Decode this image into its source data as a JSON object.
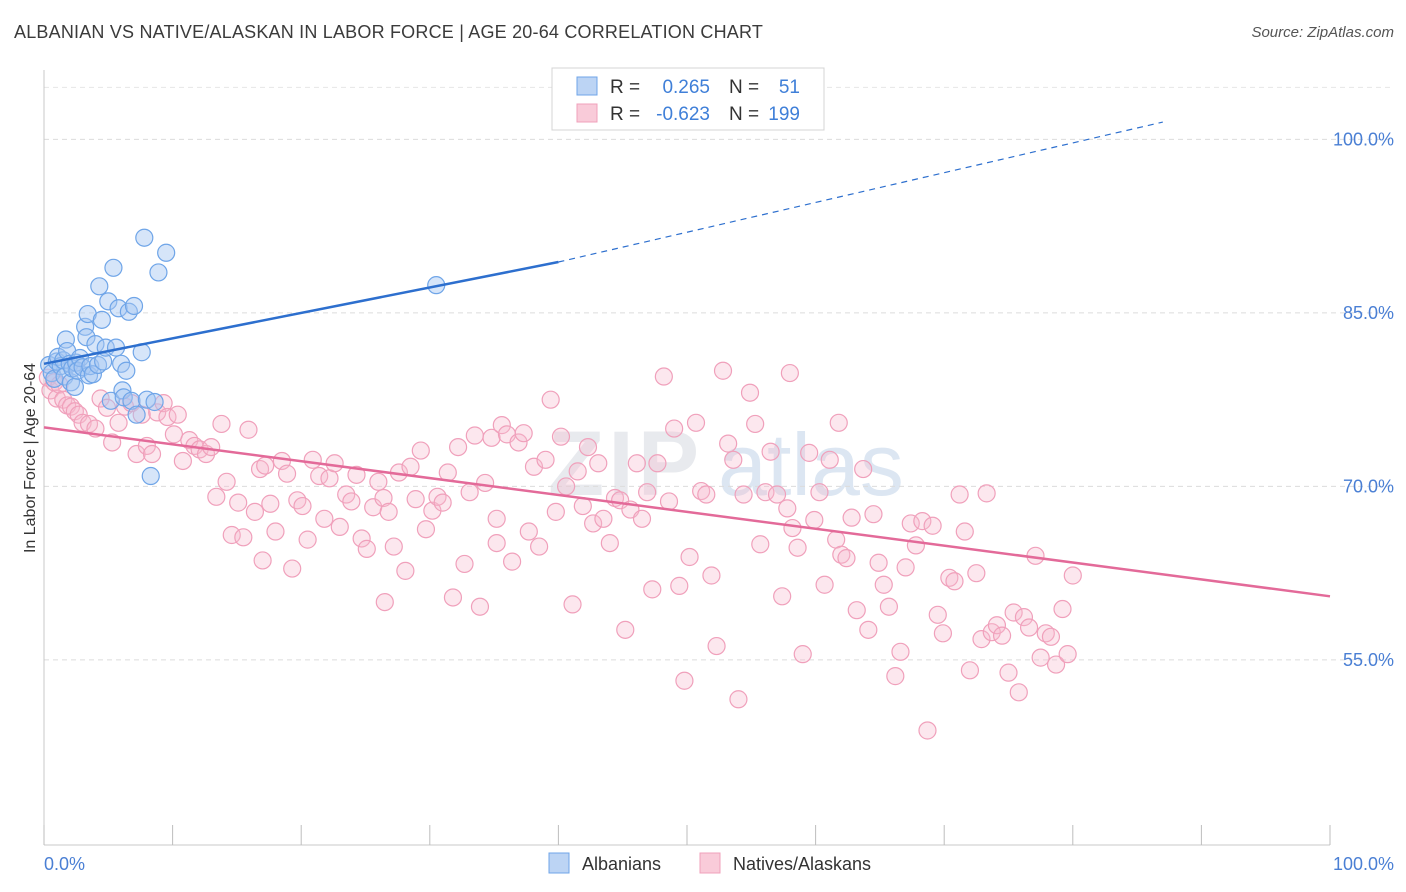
{
  "title": "ALBANIAN VS NATIVE/ALASKAN IN LABOR FORCE | AGE 20-64 CORRELATION CHART",
  "source": "Source: ZipAtlas.com",
  "watermark": {
    "zip": "ZIP",
    "atlas": "atlas"
  },
  "legend": {
    "rows": [
      {
        "r_label": "R =",
        "r_value": "0.265",
        "n_label": "N =",
        "n_value": "51",
        "color": "#6fa5e8"
      },
      {
        "r_label": "R =",
        "r_value": "-0.623",
        "n_label": "N =",
        "n_value": "199",
        "color": "#f0a0bb"
      }
    ]
  },
  "bottom_legend": {
    "albanians": "Albanians",
    "natives": "Natives/Alaskans"
  },
  "chart_data": {
    "type": "scatter",
    "xlabel": "",
    "ylabel": "In Labor Force | Age 20-64",
    "xlim": [
      0,
      100
    ],
    "ylim": [
      39,
      106
    ],
    "x_tick_labels": {
      "left": "0.0%",
      "right": "100.0%"
    },
    "y_ticks": [
      {
        "value": 100,
        "label": "100.0%"
      },
      {
        "value": 85,
        "label": "85.0%"
      },
      {
        "value": 70,
        "label": "70.0%"
      },
      {
        "value": 55,
        "label": "55.0%"
      }
    ],
    "grid": true,
    "series": [
      {
        "name": "Albanians",
        "color": "#6fa5e8",
        "line_color": "#2d6fce",
        "r": 0.265,
        "n": 51,
        "trend": {
          "x0": 0,
          "y0": 80.6,
          "x1": 40,
          "y1": 89.4,
          "x_dash_end": 87,
          "y_dash_end": 101.5
        },
        "points": [
          [
            0.4,
            80.5
          ],
          [
            0.6,
            79.8
          ],
          [
            0.8,
            79.3
          ],
          [
            1.0,
            80.8
          ],
          [
            1.1,
            81.2
          ],
          [
            1.3,
            80.4
          ],
          [
            1.5,
            80.9
          ],
          [
            1.6,
            79.5
          ],
          [
            1.7,
            82.7
          ],
          [
            1.8,
            81.7
          ],
          [
            2.0,
            80.6
          ],
          [
            2.1,
            79.0
          ],
          [
            2.2,
            80.2
          ],
          [
            2.4,
            78.6
          ],
          [
            2.5,
            80.7
          ],
          [
            2.6,
            80.0
          ],
          [
            2.8,
            81.1
          ],
          [
            3.0,
            80.3
          ],
          [
            3.2,
            83.8
          ],
          [
            3.3,
            82.9
          ],
          [
            3.4,
            84.9
          ],
          [
            3.5,
            79.6
          ],
          [
            3.6,
            80.4
          ],
          [
            3.8,
            79.7
          ],
          [
            4.0,
            82.3
          ],
          [
            4.2,
            80.5
          ],
          [
            4.3,
            87.3
          ],
          [
            4.5,
            84.4
          ],
          [
            4.6,
            80.8
          ],
          [
            4.8,
            82.0
          ],
          [
            5.0,
            86.0
          ],
          [
            5.2,
            77.4
          ],
          [
            5.4,
            88.9
          ],
          [
            5.6,
            82.0
          ],
          [
            5.8,
            85.4
          ],
          [
            6.0,
            80.6
          ],
          [
            6.1,
            78.3
          ],
          [
            6.2,
            77.7
          ],
          [
            6.4,
            80.0
          ],
          [
            6.6,
            85.1
          ],
          [
            6.8,
            77.4
          ],
          [
            7.0,
            85.6
          ],
          [
            7.2,
            76.2
          ],
          [
            7.6,
            81.6
          ],
          [
            7.8,
            91.5
          ],
          [
            8.0,
            77.5
          ],
          [
            8.3,
            70.9
          ],
          [
            8.6,
            77.3
          ],
          [
            8.9,
            88.5
          ],
          [
            9.5,
            90.2
          ],
          [
            30.5,
            87.4
          ]
        ]
      },
      {
        "name": "Natives/Alaskans",
        "color": "#f0a0bb",
        "line_color": "#e36a99",
        "r": -0.623,
        "n": 199,
        "trend": {
          "x0": 0,
          "y0": 75.1,
          "x1": 100,
          "y1": 60.5
        },
        "points": [
          [
            0.3,
            79.4
          ],
          [
            0.5,
            78.3
          ],
          [
            0.8,
            79.0
          ],
          [
            1.0,
            77.6
          ],
          [
            1.2,
            78.8
          ],
          [
            1.5,
            77.5
          ],
          [
            1.8,
            77.0
          ],
          [
            2.1,
            76.9
          ],
          [
            2.4,
            76.5
          ],
          [
            2.7,
            76.2
          ],
          [
            3.0,
            75.5
          ],
          [
            3.5,
            75.4
          ],
          [
            4.0,
            75.0
          ],
          [
            4.4,
            77.6
          ],
          [
            4.9,
            76.8
          ],
          [
            5.3,
            73.8
          ],
          [
            5.8,
            75.5
          ],
          [
            6.3,
            76.9
          ],
          [
            6.8,
            77.2
          ],
          [
            7.2,
            72.8
          ],
          [
            7.6,
            76.2
          ],
          [
            8.0,
            73.5
          ],
          [
            8.4,
            72.8
          ],
          [
            8.8,
            76.4
          ],
          [
            9.3,
            77.2
          ],
          [
            9.6,
            76.0
          ],
          [
            10.1,
            74.5
          ],
          [
            10.4,
            76.2
          ],
          [
            10.8,
            72.2
          ],
          [
            11.3,
            74.0
          ],
          [
            11.7,
            73.5
          ],
          [
            12.1,
            73.2
          ],
          [
            12.6,
            72.8
          ],
          [
            13.0,
            73.4
          ],
          [
            13.4,
            69.1
          ],
          [
            13.8,
            75.4
          ],
          [
            14.2,
            70.4
          ],
          [
            14.6,
            65.8
          ],
          [
            15.1,
            68.6
          ],
          [
            15.5,
            65.6
          ],
          [
            15.9,
            74.9
          ],
          [
            16.4,
            67.8
          ],
          [
            16.8,
            71.5
          ],
          [
            17.2,
            71.8
          ],
          [
            17.6,
            68.5
          ],
          [
            18.0,
            66.1
          ],
          [
            18.5,
            72.2
          ],
          [
            18.9,
            71.1
          ],
          [
            19.3,
            62.9
          ],
          [
            19.7,
            68.8
          ],
          [
            20.1,
            68.3
          ],
          [
            20.5,
            65.4
          ],
          [
            20.9,
            72.3
          ],
          [
            21.4,
            70.9
          ],
          [
            21.8,
            67.2
          ],
          [
            22.2,
            70.7
          ],
          [
            22.6,
            72.0
          ],
          [
            23.0,
            66.5
          ],
          [
            23.5,
            69.3
          ],
          [
            23.9,
            68.7
          ],
          [
            24.3,
            71.0
          ],
          [
            24.7,
            65.5
          ],
          [
            25.1,
            64.6
          ],
          [
            25.6,
            68.2
          ],
          [
            26.0,
            70.4
          ],
          [
            26.4,
            69.0
          ],
          [
            26.8,
            67.8
          ],
          [
            27.2,
            64.8
          ],
          [
            27.6,
            71.2
          ],
          [
            28.1,
            62.7
          ],
          [
            28.5,
            71.7
          ],
          [
            28.9,
            68.9
          ],
          [
            29.3,
            73.1
          ],
          [
            29.7,
            66.3
          ],
          [
            30.2,
            67.9
          ],
          [
            30.6,
            69.1
          ],
          [
            31.0,
            68.6
          ],
          [
            31.4,
            71.2
          ],
          [
            31.8,
            60.4
          ],
          [
            32.2,
            73.4
          ],
          [
            32.7,
            63.3
          ],
          [
            33.1,
            69.5
          ],
          [
            33.5,
            74.4
          ],
          [
            33.9,
            59.6
          ],
          [
            34.3,
            70.3
          ],
          [
            34.8,
            74.2
          ],
          [
            35.2,
            65.1
          ],
          [
            35.6,
            75.3
          ],
          [
            36.0,
            74.5
          ],
          [
            36.4,
            63.5
          ],
          [
            36.9,
            73.8
          ],
          [
            37.3,
            74.6
          ],
          [
            37.7,
            66.1
          ],
          [
            38.1,
            71.7
          ],
          [
            38.5,
            64.8
          ],
          [
            39.0,
            72.3
          ],
          [
            39.4,
            77.5
          ],
          [
            39.8,
            67.8
          ],
          [
            40.2,
            74.3
          ],
          [
            40.6,
            70.0
          ],
          [
            41.1,
            59.8
          ],
          [
            41.5,
            71.3
          ],
          [
            41.9,
            68.3
          ],
          [
            42.3,
            73.4
          ],
          [
            42.7,
            66.8
          ],
          [
            43.1,
            72.0
          ],
          [
            43.5,
            67.2
          ],
          [
            44.0,
            65.1
          ],
          [
            44.4,
            69.0
          ],
          [
            44.8,
            68.8
          ],
          [
            45.2,
            57.6
          ],
          [
            45.6,
            68.0
          ],
          [
            46.1,
            72.0
          ],
          [
            46.5,
            67.2
          ],
          [
            46.9,
            69.5
          ],
          [
            47.3,
            61.1
          ],
          [
            47.7,
            72.0
          ],
          [
            48.2,
            79.5
          ],
          [
            48.6,
            68.7
          ],
          [
            49.0,
            75.0
          ],
          [
            49.4,
            61.4
          ],
          [
            49.8,
            53.2
          ],
          [
            50.2,
            63.9
          ],
          [
            50.7,
            75.5
          ],
          [
            51.1,
            69.6
          ],
          [
            51.5,
            69.3
          ],
          [
            51.9,
            62.3
          ],
          [
            52.3,
            56.2
          ],
          [
            52.8,
            80.0
          ],
          [
            53.2,
            73.7
          ],
          [
            53.6,
            72.3
          ],
          [
            54.0,
            51.6
          ],
          [
            54.4,
            69.3
          ],
          [
            54.9,
            78.1
          ],
          [
            55.3,
            75.4
          ],
          [
            55.7,
            65.0
          ],
          [
            56.1,
            69.5
          ],
          [
            56.5,
            73.0
          ],
          [
            57.0,
            69.3
          ],
          [
            57.4,
            60.5
          ],
          [
            57.8,
            68.1
          ],
          [
            58.2,
            66.4
          ],
          [
            58.6,
            64.7
          ],
          [
            59.0,
            55.5
          ],
          [
            59.5,
            72.9
          ],
          [
            59.9,
            67.1
          ],
          [
            60.3,
            69.5
          ],
          [
            60.7,
            61.5
          ],
          [
            61.1,
            72.3
          ],
          [
            61.6,
            65.4
          ],
          [
            62.0,
            64.1
          ],
          [
            62.4,
            63.8
          ],
          [
            62.8,
            67.3
          ],
          [
            63.2,
            59.3
          ],
          [
            63.7,
            71.5
          ],
          [
            64.1,
            57.6
          ],
          [
            64.5,
            67.6
          ],
          [
            64.9,
            63.4
          ],
          [
            65.3,
            61.5
          ],
          [
            65.7,
            59.6
          ],
          [
            66.2,
            53.6
          ],
          [
            66.6,
            55.7
          ],
          [
            67.0,
            63.0
          ],
          [
            67.4,
            66.8
          ],
          [
            67.8,
            64.9
          ],
          [
            68.3,
            67.0
          ],
          [
            68.7,
            48.9
          ],
          [
            69.1,
            66.6
          ],
          [
            69.5,
            58.9
          ],
          [
            69.9,
            57.3
          ],
          [
            70.4,
            62.1
          ],
          [
            70.8,
            61.8
          ],
          [
            71.2,
            69.3
          ],
          [
            71.6,
            66.1
          ],
          [
            72.0,
            54.1
          ],
          [
            72.5,
            62.5
          ],
          [
            72.9,
            56.8
          ],
          [
            73.3,
            69.4
          ],
          [
            73.7,
            57.4
          ],
          [
            74.1,
            58.0
          ],
          [
            74.5,
            57.1
          ],
          [
            75.0,
            53.9
          ],
          [
            75.4,
            59.1
          ],
          [
            75.8,
            52.2
          ],
          [
            76.2,
            58.7
          ],
          [
            76.6,
            57.8
          ],
          [
            77.1,
            64.0
          ],
          [
            77.5,
            55.2
          ],
          [
            77.9,
            57.3
          ],
          [
            78.3,
            57.0
          ],
          [
            78.7,
            54.6
          ],
          [
            79.2,
            59.4
          ],
          [
            79.6,
            55.5
          ],
          [
            80.0,
            62.3
          ],
          [
            35.2,
            67.2
          ],
          [
            26.5,
            60.0
          ],
          [
            17.0,
            63.6
          ],
          [
            58.0,
            79.8
          ],
          [
            61.8,
            75.5
          ]
        ]
      }
    ]
  }
}
